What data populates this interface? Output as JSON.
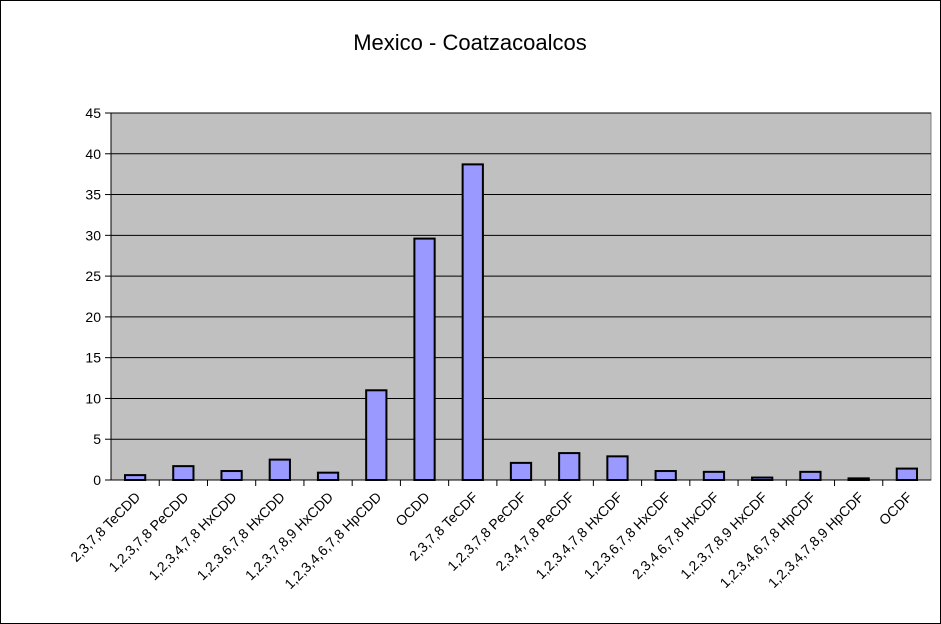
{
  "chart_data": {
    "type": "bar",
    "title": "Mexico - Coatzacoalcos",
    "xlabel": "",
    "ylabel": "",
    "ylim": [
      0,
      45
    ],
    "yticks": [
      0,
      5,
      10,
      15,
      20,
      25,
      30,
      35,
      40,
      45
    ],
    "grid": true,
    "legend": "none",
    "categories": [
      "2,3,7,8 TeCDD",
      "1,2,3,7,8 PeCDD",
      "1,2,3,4,7,8 HxCDD",
      "1,2,3,6,7,8 HxCDD",
      "1,2,3,7,8,9 HxCDD",
      "1,2,3,4,6,7,8 HpCDD",
      "OCDD",
      "2,3,7,8 TeCDF",
      "1,2,3,7,8 PeCDF",
      "2,3,4,7,8 PeCDF",
      "1,2,3,4,7,8 HxCDF",
      "1,2,3,6,7,8 HxCDF",
      "2,3,4,6,7,8 HxCDF",
      "1,2,3,7,8,9 HxCDF",
      "1,2,3,4,6,7,8 HpCDF",
      "1,2,3,4,7,8,9 HpCDF",
      "OCDF"
    ],
    "values": [
      0.6,
      1.7,
      1.1,
      2.5,
      0.9,
      11.0,
      29.6,
      38.7,
      2.1,
      3.3,
      2.9,
      1.1,
      1.0,
      0.3,
      1.0,
      0.2,
      1.4
    ],
    "colors": {
      "plot_bg": "#c0c0c0",
      "bar_fill": "#9999ff",
      "bar_stroke": "#000000",
      "grid": "#000000"
    }
  }
}
